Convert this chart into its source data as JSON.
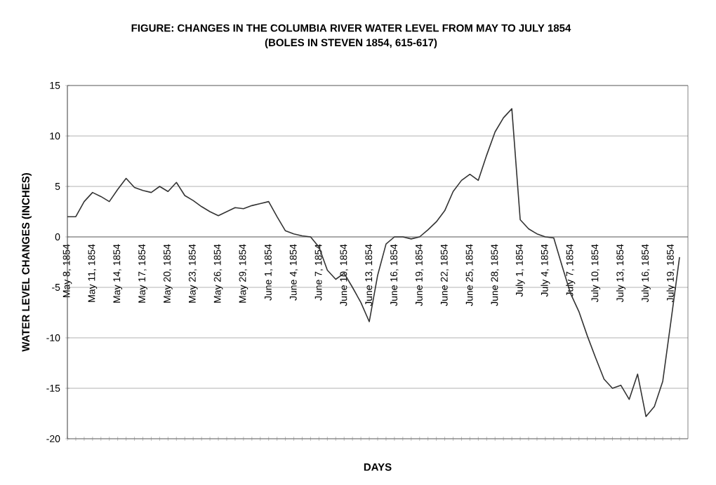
{
  "chart_data": {
    "type": "line",
    "title": "FIGURE: CHANGES IN THE COLUMBIA RIVER WATER LEVEL FROM MAY TO JULY 1854",
    "subtitle": "(BOLES IN STEVEN 1854, 615-617)",
    "xlabel": "DAYS",
    "ylabel": "WATER LEVEL CHANGES (INCHES)",
    "categories": [
      "May 8, 1854",
      null,
      null,
      "May 11, 1854",
      null,
      null,
      "May 14, 1854",
      null,
      null,
      "May 17, 1854",
      null,
      null,
      "May 20, 1854",
      null,
      null,
      "May 23, 1854",
      null,
      null,
      "May 26, 1854",
      null,
      null,
      "May 29, 1854",
      null,
      null,
      "June 1, 1854",
      null,
      null,
      "June 4, 1854",
      null,
      null,
      "June 7, 1854",
      null,
      null,
      "June 10, 1854",
      null,
      null,
      "June 13, 1854",
      null,
      null,
      "June 16, 1854",
      null,
      null,
      "June 19, 1854",
      null,
      null,
      "June 22, 1854",
      null,
      null,
      "June 25, 1854",
      null,
      null,
      "June 28, 1854",
      null,
      null,
      "July 1, 1854",
      null,
      null,
      "July 4, 1854",
      null,
      null,
      "July 7, 1854",
      null,
      null,
      "July 10, 1854",
      null,
      null,
      "July 13, 1854",
      null,
      null,
      "July 16, 1854",
      null,
      null,
      "July 19, 1854",
      null
    ],
    "values": [
      2.0,
      2.0,
      3.5,
      4.4,
      4.0,
      3.5,
      4.7,
      5.8,
      4.9,
      4.6,
      4.4,
      5.0,
      4.5,
      5.4,
      4.1,
      3.6,
      3.0,
      2.5,
      2.1,
      2.5,
      2.9,
      2.8,
      3.1,
      3.3,
      3.5,
      2.0,
      0.6,
      0.3,
      0.1,
      0.0,
      -1.0,
      -3.3,
      -4.2,
      -3.6,
      -5.0,
      -6.5,
      -8.4,
      -3.8,
      -0.7,
      0.0,
      0.0,
      -0.2,
      0.0,
      0.7,
      1.5,
      2.6,
      4.5,
      5.6,
      6.2,
      5.6,
      8.1,
      10.4,
      11.8,
      12.7,
      1.7,
      0.8,
      0.3,
      0.0,
      -0.1,
      -2.9,
      -5.6,
      -7.4,
      -9.8,
      -12.0,
      -14.1,
      -15.0,
      -14.7,
      -16.1,
      -13.6,
      -17.8,
      -16.8,
      -14.3,
      -8.2,
      -2.0
    ],
    "color": "#333333",
    "ylim": [
      -20,
      15
    ],
    "yticks": [
      -20,
      -15,
      -10,
      -5,
      0,
      5,
      10,
      15
    ],
    "grid": "y"
  }
}
